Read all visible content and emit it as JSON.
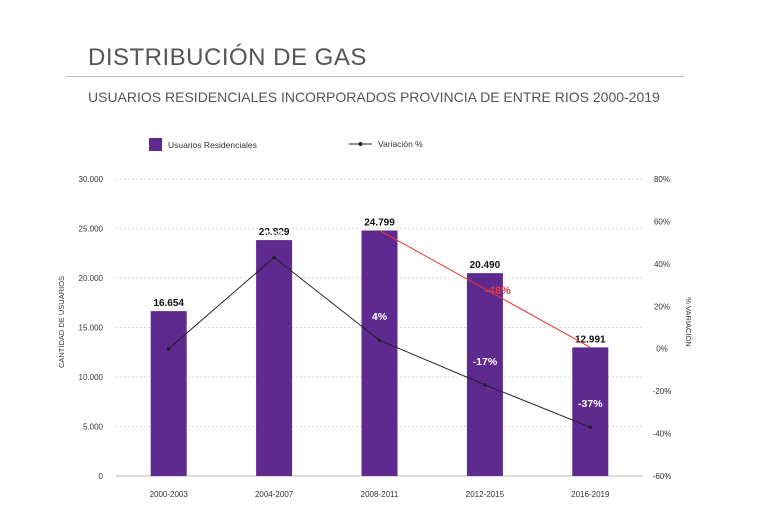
{
  "header": {
    "title": "DISTRIBUCIÓN DE GAS",
    "subtitle": "USUARIOS RESIDENCIALES INCORPORADOS PROVINCIA DE ENTRE RIOS 2000-2019"
  },
  "colors": {
    "bar": "#5f2a8f",
    "line": "#222222",
    "trend": "#e53935",
    "grid": "#dddddd",
    "highlight": "#e53935"
  },
  "chart_data": {
    "type": "bar",
    "categories": [
      "2000-2003",
      "2004-2007",
      "2008-2011",
      "2012-2015",
      "2016-2019"
    ],
    "series": [
      {
        "name": "Usuarios Residenciales",
        "type": "bar",
        "axis": "left",
        "values": [
          16654,
          23829,
          24799,
          20490,
          12991
        ],
        "labels": [
          "16.654",
          "23.829",
          "24.799",
          "20.490",
          "12.991"
        ]
      },
      {
        "name": "Variación %",
        "type": "line",
        "axis": "right",
        "values": [
          0,
          43,
          4,
          -17,
          -37
        ],
        "labels": [
          "",
          "43%",
          "4%",
          "-17%",
          "-37%"
        ]
      }
    ],
    "trend_line": {
      "from": {
        "category": "2008-2011",
        "value": 24799
      },
      "to": {
        "category": "2016-2019",
        "value": 12991
      }
    },
    "annotation": {
      "text": "-48%"
    },
    "ylabel": "CANTIDAD DE USUARIOS",
    "y2label": "% VARIACIÓN",
    "ylim": [
      0,
      30000
    ],
    "y2lim": [
      -60,
      80
    ],
    "yticks": [
      "0",
      "5.000",
      "10.000",
      "15.000",
      "20.000",
      "25.000",
      "30.000"
    ],
    "y2ticks": [
      "-60%",
      "-40%",
      "-20%",
      "0%",
      "20%",
      "40%",
      "60%",
      "80%"
    ],
    "grid": "horizontal-dotted",
    "legend": "top"
  }
}
